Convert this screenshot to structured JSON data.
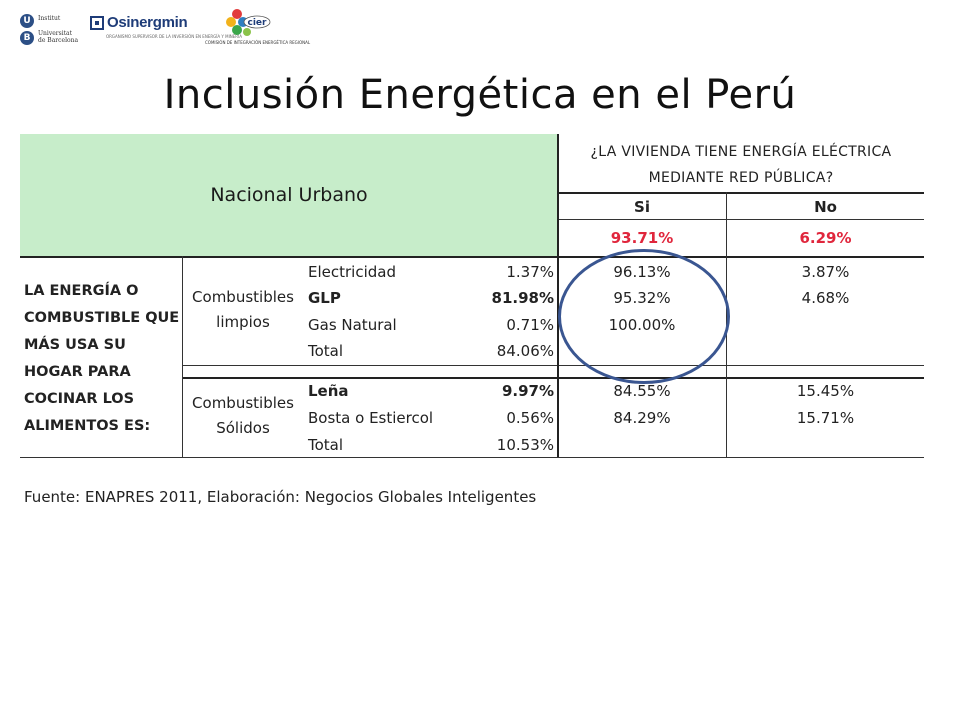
{
  "logos": {
    "ub": {
      "line1": "Institut",
      "line2": "Universitat",
      "line3": "de Barcelona",
      "badge1": "U",
      "badge2": "B"
    },
    "osinergmin": {
      "name": "Osinergmin",
      "sub": "ORGANISMO SUPERVISOR DE LA INVERSIÓN EN ENERGÍA Y MINERÍA"
    },
    "cier": {
      "name": "cier",
      "sub": "COMISIÓN DE INTEGRACIÓN ENERGÉTICA REGIONAL"
    }
  },
  "title": "Inclusión Energética en el Perú",
  "table": {
    "scope": "Nacional Urbano",
    "question_line1": "¿LA VIVIENDA TIENE ENERGÍA ELÉCTRICA",
    "question_line2": "MEDIANTE RED PÚBLICA?",
    "col_si": "Si",
    "col_no": "No",
    "total_si": "93.71%",
    "total_no": "6.29%",
    "row_label": "LA ENERGÍA O COMBUSTIBLE QUE MÁS USA SU HOGAR PARA COCINAR LOS ALIMENTOS ES:",
    "groups": [
      {
        "name_line1": "Combustibles",
        "name_line2": "limpios",
        "rows": [
          {
            "label": "Electricidad",
            "share": "1.37%",
            "si": "96.13%",
            "no": "3.87%",
            "highlight": false
          },
          {
            "label": "GLP",
            "share": "81.98%",
            "si": "95.32%",
            "no": "4.68%",
            "highlight": true
          },
          {
            "label": "Gas Natural",
            "share": "0.71%",
            "si": "100.00%",
            "no": "",
            "highlight": false
          },
          {
            "label": "Total",
            "share": "84.06%",
            "si": "",
            "no": "",
            "highlight": false
          }
        ]
      },
      {
        "name_line1": "Combustibles",
        "name_line2": "Sólidos",
        "rows": [
          {
            "label": "Leña",
            "share": "9.97%",
            "si": "84.55%",
            "no": "15.45%",
            "highlight": true
          },
          {
            "label": "Bosta o Estiercol",
            "share": "0.56%",
            "si": "84.29%",
            "no": "15.71%",
            "highlight": false
          },
          {
            "label": "Total",
            "share": "10.53%",
            "si": "",
            "no": "",
            "highlight": false
          }
        ]
      }
    ],
    "highlight_color": "#e0263c",
    "header_bg": "#c7edca",
    "circle_color": "#3a5691"
  },
  "source": "Fuente: ENAPRES 2011, Elaboración: Negocios Globales Inteligentes"
}
